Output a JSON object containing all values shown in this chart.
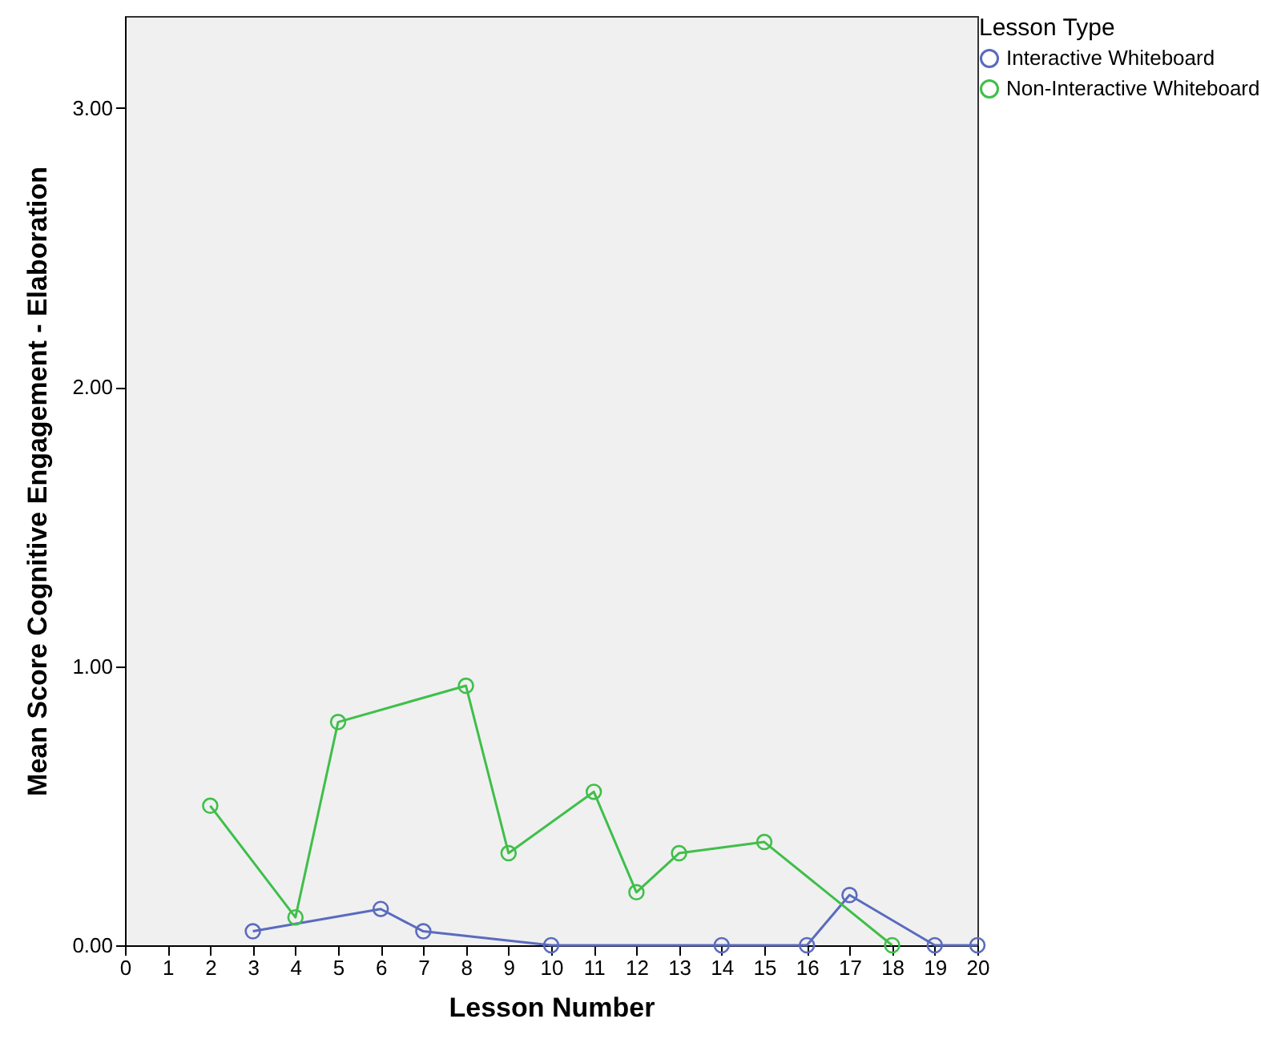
{
  "chart_data": {
    "type": "line",
    "xlabel": "Lesson Number",
    "ylabel": "Mean Score Cognitive Engagement - Elaboration",
    "legend_title": "Lesson Type",
    "legend": "top right",
    "grid": false,
    "marker": "circle",
    "line_style": "solid",
    "xlim": [
      0,
      20
    ],
    "xticks": [
      0,
      1,
      2,
      3,
      4,
      5,
      6,
      7,
      8,
      9,
      10,
      11,
      12,
      13,
      14,
      15,
      16,
      17,
      18,
      19,
      20
    ],
    "ylim": [
      0,
      3.33
    ],
    "yticks": [
      {
        "value": 0,
        "label": "0.00"
      },
      {
        "value": 1,
        "label": "1.00"
      },
      {
        "value": 2,
        "label": "2.00"
      },
      {
        "value": 3,
        "label": "3.00"
      }
    ],
    "series": [
      {
        "name": "Interactive Whiteboard",
        "color": "#5a6bbf",
        "x": [
          3,
          6,
          7,
          10,
          14,
          16,
          17,
          19,
          20
        ],
        "values": [
          0.05,
          0.13,
          0.05,
          0,
          0,
          0,
          0.18,
          0,
          0
        ]
      },
      {
        "name": "Non-Interactive Whiteboard",
        "color": "#3fbf4a",
        "x": [
          2,
          4,
          5,
          8,
          9,
          11,
          12,
          13,
          15,
          18
        ],
        "values": [
          0.5,
          0.1,
          0.8,
          0.93,
          0.33,
          0.55,
          0.19,
          0.33,
          0.37,
          0
        ]
      }
    ]
  }
}
